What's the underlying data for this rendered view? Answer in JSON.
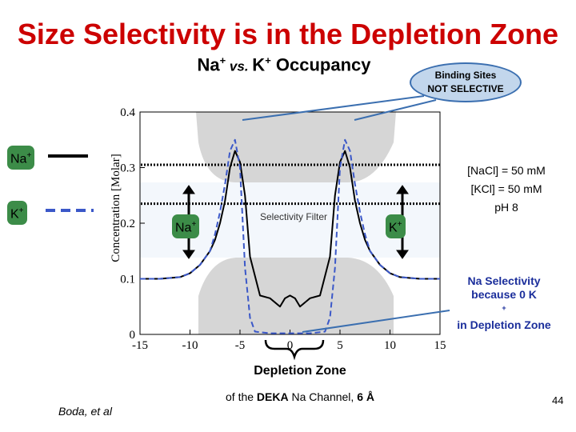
{
  "slide": {
    "title": "Size Selectivity is in the Depletion Zone",
    "subtitle_main": "Na",
    "subtitle_sup1": "+",
    "subtitle_vs": " vs. ",
    "subtitle_k": "K",
    "subtitle_sup2": "+",
    "subtitle_rest": " Occupancy",
    "callout_line1": "Binding Sites",
    "callout_line2": "NOT  SELECTIVE",
    "conditions": [
      "[NaCl] = 50 mM",
      "[KCl] = 50 mM",
      "pH 8"
    ],
    "na_selectivity": [
      "Na Selectivity",
      "because 0 K",
      "in Depletion Zone"
    ],
    "na_selectivity_sup": "+",
    "depletion_label": "Depletion Zone",
    "deka_prefix": "of the ",
    "deka_bold1": "DEKA",
    "deka_mid": " Na Channel, ",
    "deka_bold2": "6 Å",
    "author": "Boda, et al",
    "page_number": "44",
    "legend": [
      {
        "label": "Na",
        "sup": "+",
        "style": "solid",
        "color": "#000000"
      },
      {
        "label": "K",
        "sup": "+",
        "style": "dashed",
        "color": "#3b58c8"
      }
    ],
    "arrow_labels": {
      "left": "Na",
      "left_sup": "+",
      "right": "K",
      "right_sup": "+"
    }
  },
  "chart_data": {
    "type": "line",
    "title": "Na+ vs. K+ Occupancy",
    "xlabel": "",
    "ylabel": "Concentration  [Molar]",
    "xlim": [
      -15,
      15
    ],
    "ylim": [
      0,
      0.4
    ],
    "xticks": [
      -15,
      -10,
      -5,
      0,
      5,
      10,
      15
    ],
    "yticks": [
      0,
      0.1,
      0.2,
      0.3,
      0.4
    ],
    "xtick_labels": [
      "-15",
      "-10",
      "-5",
      "0",
      "5",
      "10",
      "15"
    ],
    "ytick_labels": [
      "0",
      "0.1",
      "0.2",
      "0.3",
      "0.4"
    ],
    "annotation": "Selectivity Filter",
    "reference_lines": [
      0.305,
      0.235
    ],
    "series": [
      {
        "name": "Na+",
        "style": "solid",
        "color": "#000000",
        "x": [
          -15,
          -13,
          -11,
          -10,
          -9,
          -8,
          -7.5,
          -7,
          -6.5,
          -6,
          -5.5,
          -5,
          -4.5,
          -4,
          -3,
          -2,
          -1,
          -0.5,
          0,
          0.5,
          1,
          2,
          3,
          4,
          4.5,
          5,
          5.5,
          6,
          6.5,
          7,
          7.5,
          8,
          9,
          10,
          11,
          13,
          15
        ],
        "y": [
          0.1,
          0.1,
          0.103,
          0.11,
          0.125,
          0.15,
          0.17,
          0.2,
          0.24,
          0.3,
          0.33,
          0.31,
          0.25,
          0.14,
          0.07,
          0.065,
          0.05,
          0.065,
          0.07,
          0.065,
          0.05,
          0.065,
          0.07,
          0.14,
          0.25,
          0.31,
          0.33,
          0.3,
          0.24,
          0.2,
          0.17,
          0.15,
          0.125,
          0.11,
          0.103,
          0.1,
          0.1
        ]
      },
      {
        "name": "K+",
        "style": "dashed",
        "color": "#3b58c8",
        "x": [
          -15,
          -13,
          -11,
          -10,
          -9,
          -8,
          -7.5,
          -7,
          -6.5,
          -6,
          -5.5,
          -5,
          -4.5,
          -4,
          -3.5,
          -2,
          0,
          2,
          3.5,
          4,
          4.5,
          5,
          5.5,
          6,
          6.5,
          7,
          7.5,
          8,
          9,
          10,
          11,
          13,
          15
        ],
        "y": [
          0.1,
          0.1,
          0.103,
          0.11,
          0.125,
          0.15,
          0.18,
          0.22,
          0.27,
          0.33,
          0.35,
          0.3,
          0.12,
          0.03,
          0.005,
          0.002,
          0.002,
          0.002,
          0.005,
          0.03,
          0.12,
          0.3,
          0.35,
          0.33,
          0.27,
          0.22,
          0.18,
          0.15,
          0.125,
          0.11,
          0.103,
          0.1,
          0.1
        ]
      }
    ]
  }
}
